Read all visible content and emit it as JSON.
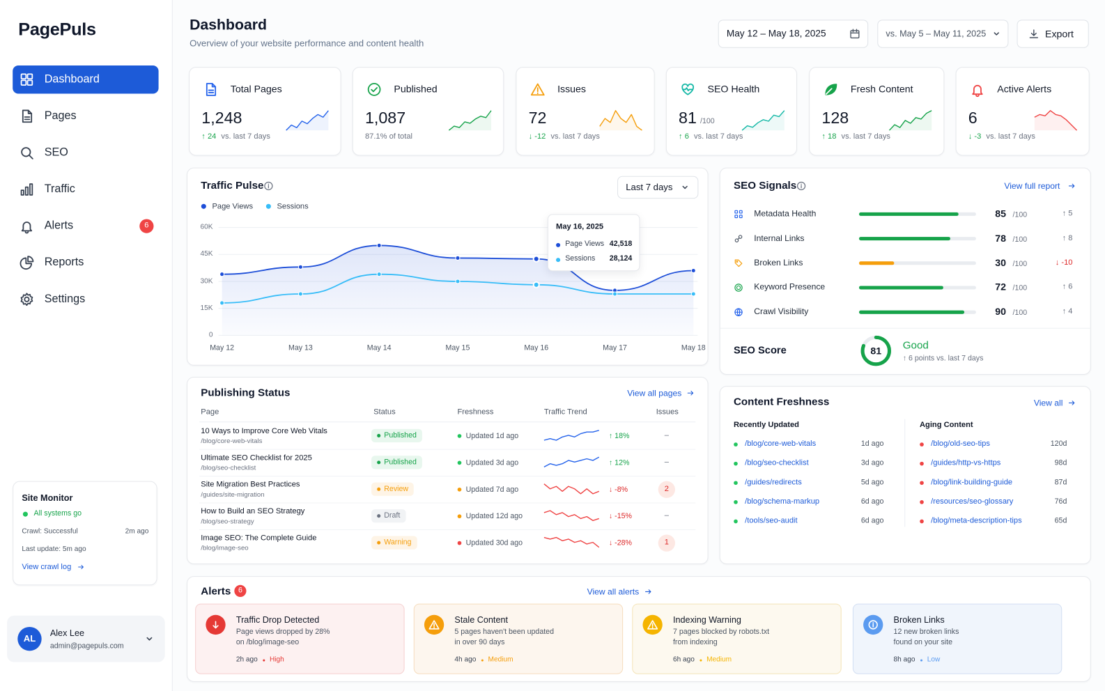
{
  "sidebar": {
    "brand": "PagePuls",
    "nav": [
      {
        "label": "Dashboard",
        "active": true
      },
      {
        "label": "Pages"
      },
      {
        "label": "SEO"
      },
      {
        "label": "Traffic"
      },
      {
        "label": "Alerts",
        "badge": "6"
      },
      {
        "label": "Reports"
      },
      {
        "label": "Settings"
      }
    ],
    "monitor": {
      "title": "Site Monitor",
      "status": "All systems go",
      "crawl": "Crawl: Successful",
      "crawl_time": "2m ago",
      "last_update": "Last update: 5m ago",
      "link": "View crawl log"
    },
    "user": {
      "initials": "AL",
      "name": "Alex Lee",
      "email": "admin@pagepuls.com"
    }
  },
  "header": {
    "title": "Dashboard",
    "subtitle": "Overview of your website performance and content health",
    "date_range": "May 12 – May 18, 2025",
    "compare": "vs. May 5 – May 11, 2025",
    "export": "Export"
  },
  "kpis": [
    {
      "label": "Total Pages",
      "value": "1,248",
      "delta": "↑ 24",
      "note": "vs. last 7 days",
      "color": "#2563eb",
      "spark": [
        10,
        14,
        12,
        17,
        15,
        19,
        22,
        20,
        25
      ]
    },
    {
      "label": "Published",
      "value": "1,087",
      "note": "87.1% of total",
      "color": "#16a34a",
      "spark": [
        10,
        13,
        12,
        16,
        15,
        18,
        20,
        19,
        24
      ]
    },
    {
      "label": "Issues",
      "value": "72",
      "delta": "↓ -12",
      "note": "vs. last 7 days",
      "color": "#f59e0b",
      "spark": [
        18,
        20,
        19,
        22,
        20,
        19,
        21,
        18,
        17
      ]
    },
    {
      "label": "SEO Health",
      "value": "81",
      "unit": "/100",
      "delta": "↑ 6",
      "note": "vs. last 7 days",
      "color": "#14b8a6",
      "spark": [
        10,
        13,
        12,
        15,
        17,
        16,
        20,
        19,
        23
      ]
    },
    {
      "label": "Fresh Content",
      "value": "128",
      "delta": "↑ 18",
      "note": "vs. last 7 days",
      "color": "#16a34a",
      "spark": [
        10,
        14,
        12,
        17,
        15,
        19,
        18,
        22,
        24
      ]
    },
    {
      "label": "Active Alerts",
      "value": "6",
      "delta": "↓ -3",
      "note": "vs. last 7 days",
      "color": "#ef4444",
      "spark": [
        18,
        20,
        19,
        23,
        20,
        19,
        16,
        12,
        8
      ]
    }
  ],
  "chart_data": {
    "type": "line",
    "title": "Traffic Pulse",
    "filter": "Last 7 days",
    "categories": [
      "May 12",
      "May 13",
      "May 14",
      "May 15",
      "May 16",
      "May 17",
      "May 18"
    ],
    "series": [
      {
        "name": "Page Views",
        "color": "#1d4ed8",
        "values": [
          34000,
          38000,
          50000,
          43000,
          42518,
          25000,
          36000
        ],
        "value_labels": [
          null,
          null,
          null,
          null,
          "42,518",
          null,
          null
        ]
      },
      {
        "name": "Sessions",
        "color": "#38bdf8",
        "values": [
          18000,
          23000,
          34000,
          30000,
          28124,
          23000,
          23000
        ],
        "value_labels": [
          null,
          null,
          null,
          null,
          "28,124",
          null,
          null
        ]
      }
    ],
    "tooltip_title": "May 16, 2025",
    "ylim": [
      0,
      60000
    ],
    "yticks": [
      0,
      {
        "value": 15000,
        "label": "15K"
      },
      {
        "value": 30000,
        "label": "30K"
      },
      {
        "value": 45000,
        "label": "45K"
      },
      {
        "value": 60000,
        "label": "60K"
      }
    ],
    "grid": true
  },
  "seo_signals": {
    "title": "SEO Signals",
    "link": "View full report",
    "unit": "/100",
    "xlim": [
      0,
      100
    ],
    "items": [
      {
        "name": "Metadata Health",
        "score": 85,
        "delta": "↑ 5",
        "color": "#16a34a",
        "delta_color": "#6b7280"
      },
      {
        "name": "Internal Links",
        "score": 78,
        "delta": "↑ 8",
        "color": "#16a34a",
        "delta_color": "#6b7280"
      },
      {
        "name": "Broken Links",
        "score": 30,
        "delta": "↓ -10",
        "color": "#f59e0b",
        "delta_color": "#dc2626"
      },
      {
        "name": "Keyword Presence",
        "score": 72,
        "delta": "↑ 6",
        "color": "#16a34a",
        "delta_color": "#6b7280"
      },
      {
        "name": "Crawl Visibility",
        "score": 90,
        "delta": "↑ 4",
        "color": "#16a34a",
        "delta_color": "#6b7280"
      }
    ],
    "score": {
      "label": "SEO Score",
      "value": 81,
      "status": "Good",
      "note": "↑ 6 points vs. last 7 days",
      "color": "#16a34a"
    }
  },
  "publishing": {
    "title": "Publishing Status",
    "link": "View all pages",
    "columns": [
      "Page",
      "Status",
      "Freshness",
      "Traffic Trend",
      "Issues"
    ],
    "rows": [
      {
        "title": "10 Ways to Improve Core Web Vitals",
        "path": "/blog/core-web-vitals",
        "status": "Published",
        "status_color": "#16a34a",
        "status_bg": "#e8f7ee",
        "freshness": "Updated 1d ago",
        "dot_color": "#22c55e",
        "trend": "↑ 18%",
        "trend_color": "#16a34a",
        "spark_color": "#2563eb",
        "spark": [
          10,
          11,
          10,
          12,
          13,
          12,
          14,
          15,
          15,
          16
        ],
        "issues": "–"
      },
      {
        "title": "Ultimate SEO Checklist for 2025",
        "path": "/blog/seo-checklist",
        "status": "Published",
        "status_color": "#16a34a",
        "status_bg": "#e8f7ee",
        "freshness": "Updated 3d ago",
        "dot_color": "#22c55e",
        "trend": "↑ 12%",
        "trend_color": "#16a34a",
        "spark_color": "#2563eb",
        "spark": [
          10,
          12,
          11,
          12,
          14,
          13,
          14,
          15,
          14,
          16
        ],
        "issues": "–"
      },
      {
        "title": "Site Migration Best Practices",
        "path": "/guides/site-migration",
        "status": "Review",
        "status_color": "#f59e0b",
        "status_bg": "#fef4e6",
        "freshness": "Updated 7d ago",
        "dot_color": "#f59e0b",
        "trend": "↓ -8%",
        "trend_color": "#dc2626",
        "spark_color": "#ef4444",
        "spark": [
          16,
          14,
          15,
          13,
          15,
          14,
          12,
          14,
          12,
          13
        ],
        "issues": "2"
      },
      {
        "title": "How to Build an SEO Strategy",
        "path": "/blog/seo-strategy",
        "status": "Draft",
        "status_color": "#6b7280",
        "status_bg": "#f1f3f5",
        "freshness": "Updated 12d ago",
        "dot_color": "#f59e0b",
        "trend": "↓ -15%",
        "trend_color": "#dc2626",
        "spark_color": "#ef4444",
        "spark": [
          15,
          16,
          14,
          15,
          13,
          14,
          12,
          13,
          11,
          12
        ],
        "issues": "–"
      },
      {
        "title": "Image SEO: The Complete Guide",
        "path": "/blog/image-seo",
        "status": "Warning",
        "status_color": "#f59e0b",
        "status_bg": "#fef4e6",
        "freshness": "Updated 30d ago",
        "dot_color": "#ef4444",
        "trend": "↓ -28%",
        "trend_color": "#dc2626",
        "spark_color": "#ef4444",
        "spark": [
          16,
          15,
          16,
          14,
          15,
          13,
          14,
          12,
          13,
          10
        ],
        "issues": "1"
      }
    ]
  },
  "freshness": {
    "title": "Content Freshness",
    "link": "View all",
    "recent": {
      "title": "Recently Updated",
      "items": [
        {
          "path": "/blog/core-web-vitals",
          "age": "1d ago"
        },
        {
          "path": "/blog/seo-checklist",
          "age": "3d ago"
        },
        {
          "path": "/guides/redirects",
          "age": "5d ago"
        },
        {
          "path": "/blog/schema-markup",
          "age": "6d ago"
        },
        {
          "path": "/tools/seo-audit",
          "age": "6d ago"
        }
      ]
    },
    "aging": {
      "title": "Aging Content",
      "items": [
        {
          "path": "/blog/old-seo-tips",
          "age": "120d"
        },
        {
          "path": "/guides/http-vs-https",
          "age": "98d"
        },
        {
          "path": "/blog/link-building-guide",
          "age": "87d"
        },
        {
          "path": "/resources/seo-glossary",
          "age": "76d"
        },
        {
          "path": "/blog/meta-description-tips",
          "age": "65d"
        }
      ]
    }
  },
  "alerts": {
    "title": "Alerts",
    "badge": "6",
    "link": "View all alerts",
    "items": [
      {
        "title": "Traffic Drop Detected",
        "lines": [
          "Page views dropped by 28%",
          "on /blog/image-seo"
        ],
        "time": "2h ago",
        "severity": "High",
        "color": "#e53935",
        "bg": "#fdf1f1",
        "border": "#f5cfcf"
      },
      {
        "title": "Stale Content",
        "lines": [
          "5 pages haven't been updated",
          "in over 90 days"
        ],
        "time": "4h ago",
        "severity": "Medium",
        "color": "#f59e0b",
        "bg": "#fdf6ee",
        "border": "#f6dcbd"
      },
      {
        "title": "Indexing Warning",
        "lines": [
          "7 pages blocked by robots.txt",
          "from indexing"
        ],
        "time": "6h ago",
        "severity": "Medium",
        "color": "#f5b400",
        "bg": "#fdf9ef",
        "border": "#f4e4b8"
      },
      {
        "title": "Broken Links",
        "lines": [
          "12 new broken links",
          "found on your site"
        ],
        "time": "8h ago",
        "severity": "Low",
        "color": "#5b9bf0",
        "bg": "#f0f5fc",
        "border": "#d2def2"
      }
    ]
  }
}
